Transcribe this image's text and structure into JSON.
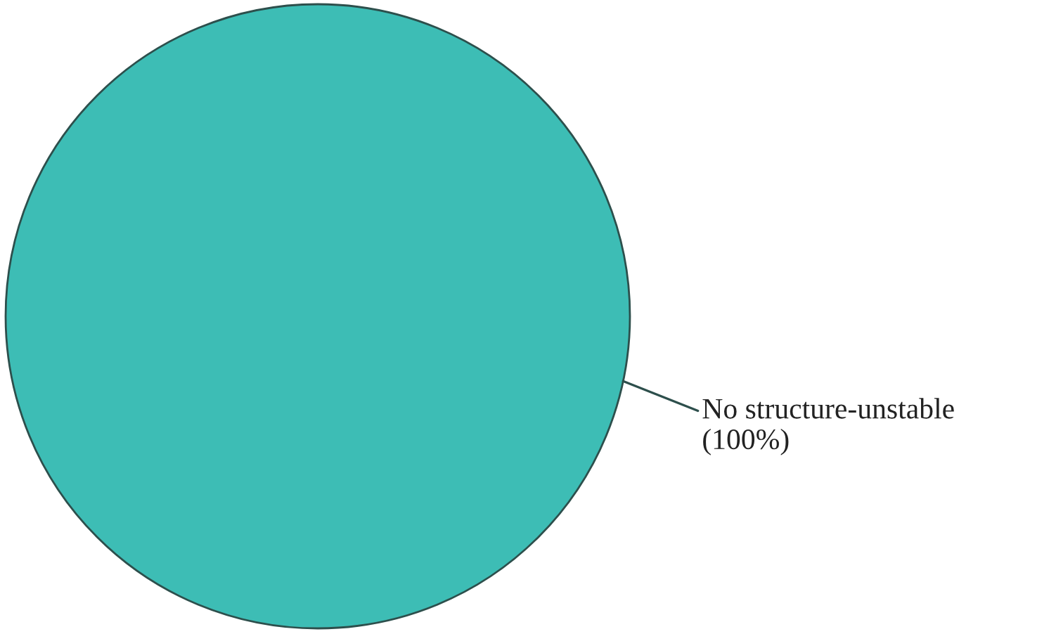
{
  "chart_data": {
    "type": "pie",
    "categories": [
      "No structure-unstable"
    ],
    "values": [
      100
    ],
    "colors": [
      "#3dbdb5"
    ],
    "value_labels": [
      "(100%)"
    ]
  }
}
